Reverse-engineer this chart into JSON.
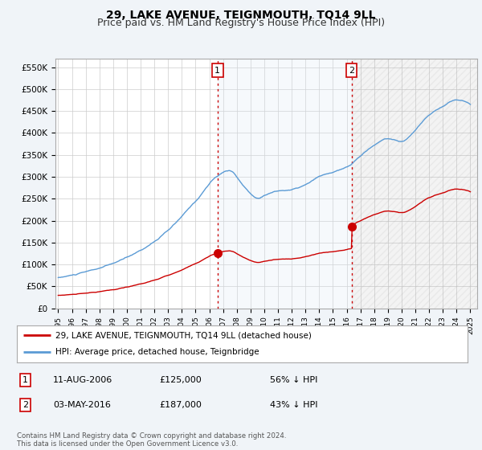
{
  "title": "29, LAKE AVENUE, TEIGNMOUTH, TQ14 9LL",
  "subtitle": "Price paid vs. HM Land Registry's House Price Index (HPI)",
  "ylim": [
    0,
    570000
  ],
  "yticks": [
    0,
    50000,
    100000,
    150000,
    200000,
    250000,
    300000,
    350000,
    400000,
    450000,
    500000,
    550000
  ],
  "ytick_labels": [
    "£0",
    "£50K",
    "£100K",
    "£150K",
    "£200K",
    "£250K",
    "£300K",
    "£350K",
    "£400K",
    "£450K",
    "£500K",
    "£550K"
  ],
  "hpi_color": "#5b9bd5",
  "hpi_fill_color": "#dce9f5",
  "price_color": "#cc0000",
  "marker_color": "#cc0000",
  "sale1_x": 2006.6,
  "sale1_y": 125000,
  "sale2_x": 2016.35,
  "sale2_y": 187000,
  "vline_color": "#cc0000",
  "vline_style": ":",
  "grid_color": "#cccccc",
  "bg_color": "#f0f4f8",
  "plot_bg": "#ffffff",
  "xlim_left": 1994.8,
  "xlim_right": 2025.5,
  "legend_line1": "29, LAKE AVENUE, TEIGNMOUTH, TQ14 9LL (detached house)",
  "legend_line2": "HPI: Average price, detached house, Teignbridge",
  "table_row1_num": "1",
  "table_row1_date": "11-AUG-2006",
  "table_row1_price": "£125,000",
  "table_row1_hpi": "56% ↓ HPI",
  "table_row2_num": "2",
  "table_row2_date": "03-MAY-2016",
  "table_row2_price": "£187,000",
  "table_row2_hpi": "43% ↓ HPI",
  "footnote": "Contains HM Land Registry data © Crown copyright and database right 2024.\nThis data is licensed under the Open Government Licence v3.0.",
  "title_fontsize": 10,
  "subtitle_fontsize": 9
}
